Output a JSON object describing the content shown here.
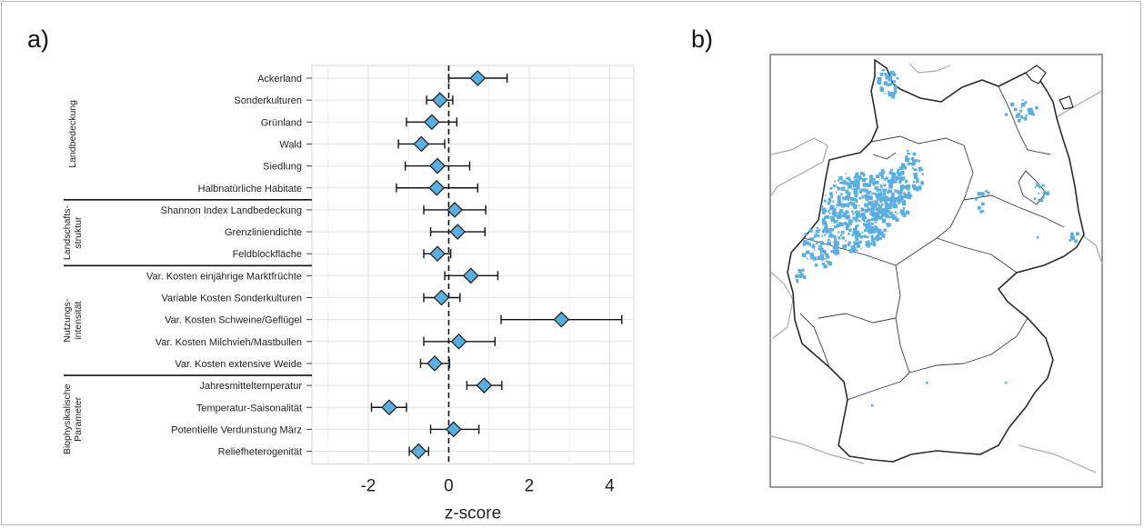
{
  "panel_a_label": "a)",
  "panel_b_label": "b)",
  "chart_data": {
    "type": "forest",
    "xlabel": "z-score",
    "xlim": [
      -3.4,
      4.6
    ],
    "xticks": [
      -2,
      0,
      2,
      4
    ],
    "reference_line": 0,
    "grid": true,
    "marker": "diamond",
    "marker_color": "#5aaee0",
    "groups": [
      {
        "name": "Landbedeckung",
        "items": [
          {
            "label": "Ackerland",
            "estimate": 0.72,
            "lower": 0.0,
            "upper": 1.45
          },
          {
            "label": "Sonderkulturen",
            "estimate": -0.22,
            "lower": -0.55,
            "upper": 0.1
          },
          {
            "label": "Grünland",
            "estimate": -0.42,
            "lower": -1.05,
            "upper": 0.2
          },
          {
            "label": "Wald",
            "estimate": -0.68,
            "lower": -1.25,
            "upper": -0.1
          },
          {
            "label": "Siedlung",
            "estimate": -0.28,
            "lower": -1.08,
            "upper": 0.52
          },
          {
            "label": "Halbnatürliche Habitate",
            "estimate": -0.3,
            "lower": -1.3,
            "upper": 0.72
          }
        ]
      },
      {
        "name": "Landschafts-\nstruktur",
        "items": [
          {
            "label": "Shannon Index Landbedeckung",
            "estimate": 0.15,
            "lower": -0.62,
            "upper": 0.92
          },
          {
            "label": "Grenzliniendichte",
            "estimate": 0.22,
            "lower": -0.45,
            "upper": 0.9
          },
          {
            "label": "Feldblockfläche",
            "estimate": -0.28,
            "lower": -0.62,
            "upper": 0.05
          }
        ]
      },
      {
        "name": "Nutzungs-\nintensität",
        "items": [
          {
            "label": "Var. Kosten einjährige Marktfrüchte",
            "estimate": 0.55,
            "lower": -0.1,
            "upper": 1.22
          },
          {
            "label": "Variable Kosten Sonderkulturen",
            "estimate": -0.18,
            "lower": -0.62,
            "upper": 0.28
          },
          {
            "label": "Var. Kosten Schweine/Geflügel",
            "estimate": 2.8,
            "lower": 1.3,
            "upper": 4.3
          },
          {
            "label": "Var. Kosten Milchvieh/Mastbullen",
            "estimate": 0.25,
            "lower": -0.62,
            "upper": 1.15
          },
          {
            "label": "Var. Kosten extensive Weide",
            "estimate": -0.35,
            "lower": -0.7,
            "upper": 0.02
          }
        ]
      },
      {
        "name": "Biophysikalische\nParameter",
        "items": [
          {
            "label": "Jahresmitteltemperatur",
            "estimate": 0.88,
            "lower": 0.45,
            "upper": 1.32
          },
          {
            "label": "Temperatur-Saisonalität",
            "estimate": -1.48,
            "lower": -1.92,
            "upper": -1.05
          },
          {
            "label": "Potentielle Verdunstung März",
            "estimate": 0.12,
            "lower": -0.45,
            "upper": 0.75
          },
          {
            "label": "Reliefheterogenität",
            "estimate": -0.75,
            "lower": -0.98,
            "upper": -0.5
          }
        ]
      }
    ]
  },
  "map": {
    "highlight_color": "#5aaee0",
    "border_color": "#2b2b2b",
    "neighbor_color": "#a8a8a8"
  }
}
